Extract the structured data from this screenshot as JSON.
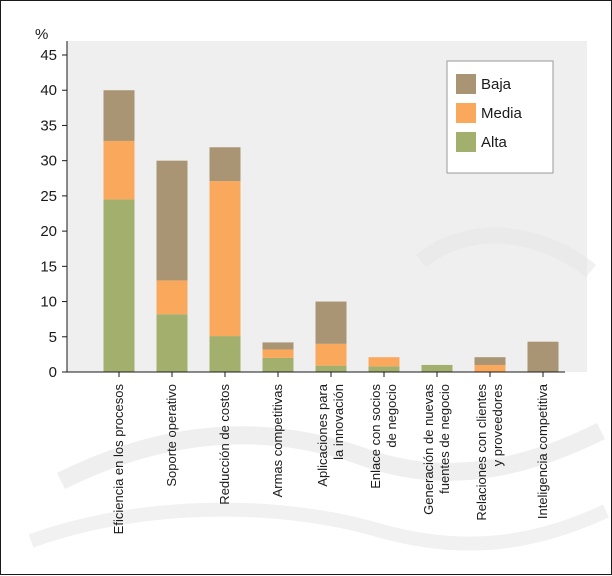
{
  "chart_data": {
    "type": "bar",
    "stacked": true,
    "ylabel": "%",
    "ylim": [
      0,
      45
    ],
    "yticks": [
      0,
      5,
      10,
      15,
      20,
      25,
      30,
      35,
      40,
      45
    ],
    "grid": false,
    "legend_position": "top-right",
    "categories": [
      [
        "Eficiencia en los procesos"
      ],
      [
        "Soporte operativo"
      ],
      [
        "Reducción de costos"
      ],
      [
        "Armas competitivas"
      ],
      [
        "Aplicaciones para",
        "la innovación"
      ],
      [
        "Enlace con socios",
        "de negocio"
      ],
      [
        "Generación de nuevas",
        "fuentes de negocio"
      ],
      [
        "Relaciones con clientes",
        "y proveedores"
      ],
      [
        "Inteligencia competitiva"
      ]
    ],
    "series": [
      {
        "name": "Alta",
        "color": "#a3b06d",
        "values": [
          24.5,
          8.2,
          5.1,
          2.0,
          0.9,
          0.8,
          1.0,
          0.0,
          0.0
        ]
      },
      {
        "name": "Media",
        "color": "#f9a85c",
        "values": [
          8.3,
          4.8,
          22.0,
          1.2,
          3.1,
          1.3,
          0.0,
          1.0,
          0.0
        ]
      },
      {
        "name": "Baja",
        "color": "#a99574",
        "values": [
          7.2,
          17.0,
          4.8,
          1.0,
          6.0,
          0.0,
          0.0,
          1.1,
          4.3
        ]
      }
    ],
    "legend_order": [
      "Baja",
      "Media",
      "Alta"
    ],
    "plot_background": "#efefef",
    "axis_color": "#1a1a1a"
  }
}
